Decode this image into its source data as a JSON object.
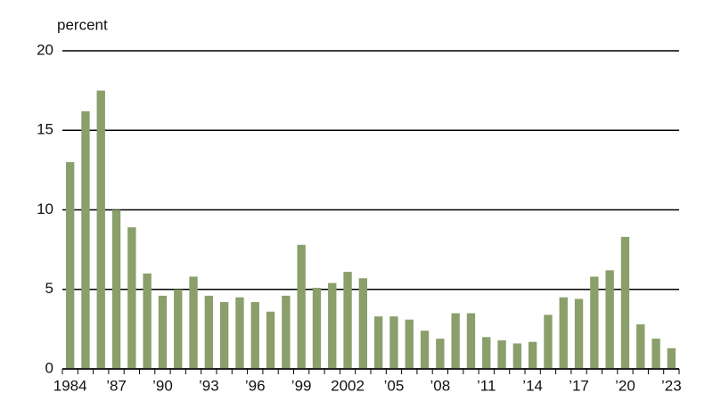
{
  "chart_data": {
    "type": "bar",
    "y_label": "percent",
    "categories": [
      "1984",
      null,
      null,
      "’87",
      null,
      null,
      "’90",
      null,
      null,
      "’93",
      null,
      null,
      "’96",
      null,
      null,
      "’99",
      null,
      null,
      "2002",
      null,
      null,
      "’05",
      null,
      null,
      "’08",
      null,
      null,
      "’11",
      null,
      null,
      "’14",
      null,
      null,
      "’17",
      null,
      null,
      "’20",
      null,
      null,
      "’23"
    ],
    "values": [
      13.0,
      16.2,
      17.5,
      10.0,
      8.9,
      6.0,
      4.6,
      5.0,
      5.8,
      4.6,
      4.2,
      4.5,
      4.2,
      3.6,
      4.6,
      7.8,
      5.1,
      5.4,
      6.1,
      5.7,
      3.3,
      3.3,
      3.1,
      2.4,
      1.9,
      3.5,
      3.5,
      2.0,
      1.8,
      1.6,
      1.7,
      3.4,
      4.5,
      4.4,
      5.8,
      6.2,
      8.3,
      2.8,
      1.9,
      1.3
    ],
    "color": "#8a9f6a",
    "ylim": [
      0,
      20
    ],
    "yticks": [
      0,
      5,
      10,
      15,
      20
    ],
    "grid": true
  }
}
